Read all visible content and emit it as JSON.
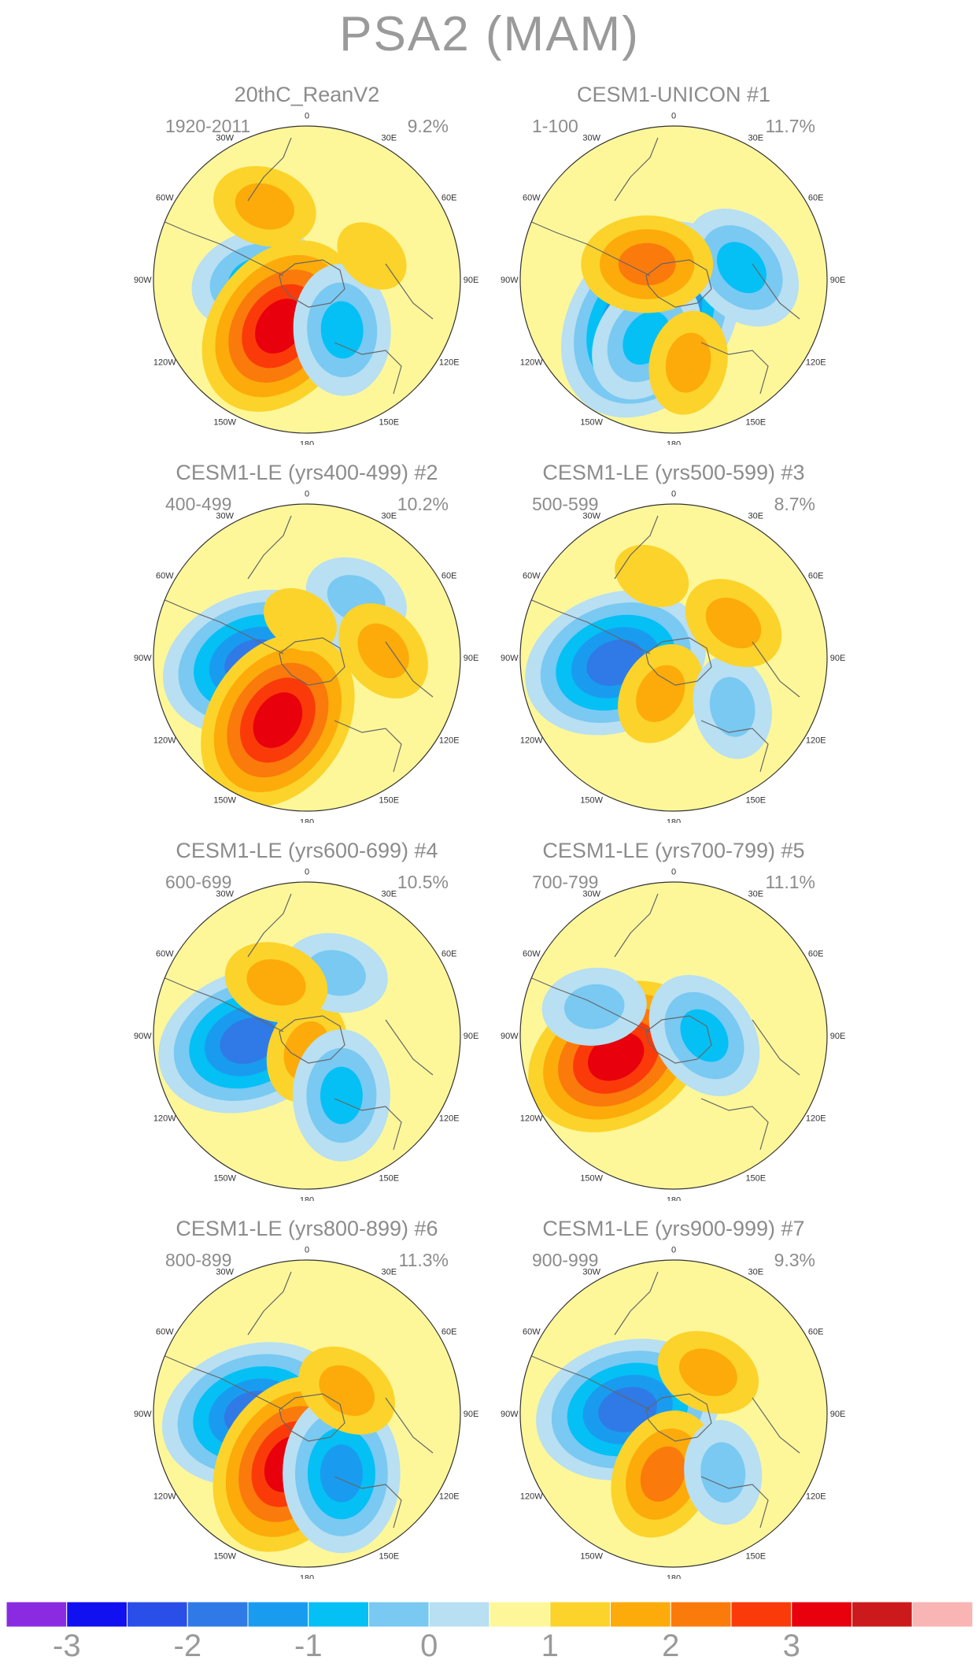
{
  "title": "PSA2 (MAM)",
  "colors": {
    "scale": [
      "#8a2be2",
      "#1010f0",
      "#2a4ee8",
      "#2f7ae6",
      "#199cf0",
      "#04c0f5",
      "#79c9f2",
      "#b8dff2",
      "#fdf79a",
      "#fcd32a",
      "#fcab0a",
      "#fb7a0c",
      "#fb3a0a",
      "#e8000c",
      "#cc1a1c",
      "#f9b4b4"
    ],
    "land": "#666666",
    "background": "#ffffff"
  },
  "lon_labels": [
    "0",
    "30E",
    "60E",
    "90E",
    "120E",
    "150E",
    "180",
    "150W",
    "120W",
    "90W",
    "60W",
    "30W"
  ],
  "panels": [
    {
      "title": "20thC_ReanV2",
      "period": "1920-2011",
      "variance": "9.2%",
      "blobs": [
        {
          "r": 0.45,
          "a": 200,
          "lvl": 6
        },
        {
          "r": 0.33,
          "a": 270,
          "lvl": 5
        },
        {
          "r": 0.35,
          "a": 210,
          "lvl": 13
        },
        {
          "r": 0.4,
          "a": 145,
          "lvl": 5
        },
        {
          "r": 0.55,
          "a": 330,
          "lvl": 10
        },
        {
          "r": 0.45,
          "a": 70,
          "lvl": 9
        }
      ]
    },
    {
      "title": "CESM1-UNICON     #1",
      "period": "1-100",
      "variance": "11.7%",
      "blobs": [
        {
          "r": 0.3,
          "a": 210,
          "lvl": 2
        },
        {
          "r": 0.42,
          "a": 205,
          "lvl": 5
        },
        {
          "r": 0.45,
          "a": 80,
          "lvl": 5
        },
        {
          "r": 0.2,
          "a": 300,
          "lvl": 11
        },
        {
          "r": 0.55,
          "a": 170,
          "lvl": 10
        }
      ]
    },
    {
      "title": "CESM1-LE (yrs400-499) #2",
      "period": "400-499",
      "variance": "10.2%",
      "blobs": [
        {
          "r": 0.35,
          "a": 265,
          "lvl": 3
        },
        {
          "r": 0.45,
          "a": 205,
          "lvl": 13
        },
        {
          "r": 0.5,
          "a": 40,
          "lvl": 6
        },
        {
          "r": 0.5,
          "a": 85,
          "lvl": 10
        },
        {
          "r": 0.25,
          "a": 350,
          "lvl": 9
        }
      ]
    },
    {
      "title": "CESM1-LE (yrs500-599) #3",
      "period": "500-599",
      "variance": "8.7%",
      "blobs": [
        {
          "r": 0.38,
          "a": 265,
          "lvl": 3
        },
        {
          "r": 0.25,
          "a": 200,
          "lvl": 10
        },
        {
          "r": 0.5,
          "a": 130,
          "lvl": 6
        },
        {
          "r": 0.45,
          "a": 60,
          "lvl": 10
        },
        {
          "r": 0.55,
          "a": 345,
          "lvl": 9
        }
      ]
    },
    {
      "title": "CESM1-LE (yrs600-699) #4",
      "period": "600-699",
      "variance": "10.5%",
      "blobs": [
        {
          "r": 0.38,
          "a": 265,
          "lvl": 3
        },
        {
          "r": 0.1,
          "a": 180,
          "lvl": 10
        },
        {
          "r": 0.45,
          "a": 150,
          "lvl": 5
        },
        {
          "r": 0.45,
          "a": 25,
          "lvl": 6
        },
        {
          "r": 0.4,
          "a": 330,
          "lvl": 10
        }
      ]
    },
    {
      "title": "CESM1-LE (yrs700-799) #5",
      "period": "700-799",
      "variance": "11.1%",
      "blobs": [
        {
          "r": 0.4,
          "a": 250,
          "lvl": 13
        },
        {
          "r": 0.2,
          "a": 90,
          "lvl": 5
        },
        {
          "r": 0.55,
          "a": 290,
          "lvl": 6
        }
      ]
    },
    {
      "title": "CESM1-LE (yrs800-899) #6",
      "period": "800-899",
      "variance": "11.3%",
      "blobs": [
        {
          "r": 0.35,
          "a": 270,
          "lvl": 3
        },
        {
          "r": 0.35,
          "a": 200,
          "lvl": 13
        },
        {
          "r": 0.45,
          "a": 150,
          "lvl": 4
        },
        {
          "r": 0.3,
          "a": 60,
          "lvl": 10
        }
      ]
    },
    {
      "title": "CESM1-LE (yrs900-999) #7",
      "period": "900-999",
      "variance": "9.3%",
      "blobs": [
        {
          "r": 0.3,
          "a": 275,
          "lvl": 3
        },
        {
          "r": 0.4,
          "a": 190,
          "lvl": 11
        },
        {
          "r": 0.35,
          "a": 40,
          "lvl": 10
        },
        {
          "r": 0.5,
          "a": 140,
          "lvl": 6
        }
      ]
    }
  ],
  "colorbar": {
    "tick_labels": [
      "-3",
      "-2",
      "-1",
      "0",
      "1",
      "2",
      "3"
    ],
    "tick_levels": [
      1,
      3,
      5,
      7,
      9,
      11,
      13
    ]
  }
}
